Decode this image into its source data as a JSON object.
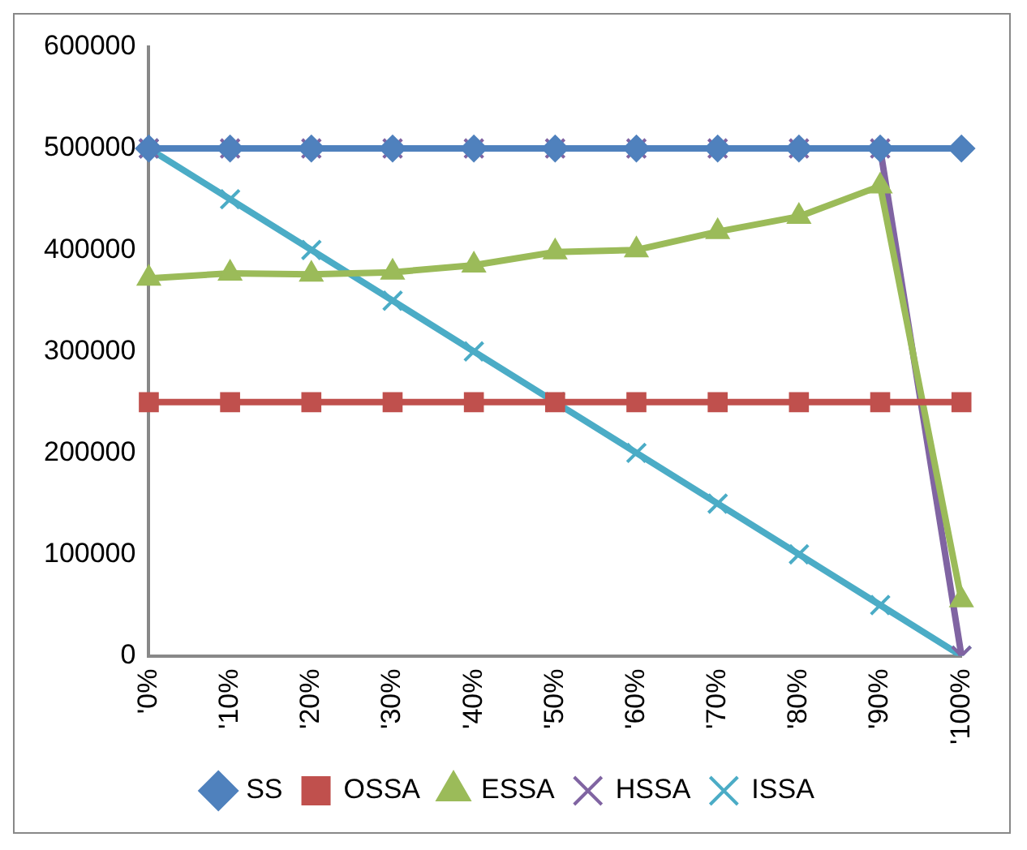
{
  "chart_data": {
    "type": "line",
    "categories": [
      "'0%",
      "'10%",
      "'20%",
      "'30%",
      "'40%",
      "'50%",
      "'60%",
      "'70%",
      "'80%",
      "'90%",
      "'100%"
    ],
    "series": [
      {
        "name": "SS",
        "color": "#4f81bd",
        "marker": "diamond",
        "values": [
          500000,
          500000,
          500000,
          500000,
          500000,
          500000,
          500000,
          500000,
          500000,
          500000,
          500000
        ]
      },
      {
        "name": "OSSA",
        "color": "#c0504d",
        "marker": "square",
        "values": [
          250000,
          250000,
          250000,
          250000,
          250000,
          250000,
          250000,
          250000,
          250000,
          250000,
          250000
        ]
      },
      {
        "name": "ESSA",
        "color": "#9bbb59",
        "marker": "triangle",
        "values": [
          372000,
          377000,
          376000,
          378000,
          385000,
          398000,
          400000,
          418000,
          433000,
          463000,
          55000
        ]
      },
      {
        "name": "HSSA",
        "color": "#8064a2",
        "marker": "cross",
        "values": [
          500000,
          500000,
          500000,
          500000,
          500000,
          500000,
          500000,
          500000,
          500000,
          500000,
          0
        ]
      },
      {
        "name": "ISSA",
        "color": "#4bacc6",
        "marker": "cross",
        "values": [
          500000,
          450000,
          400000,
          350000,
          300000,
          250000,
          200000,
          150000,
          100000,
          50000,
          0
        ]
      }
    ],
    "ylim": [
      0,
      600000
    ],
    "yticks": [
      0,
      100000,
      200000,
      300000,
      400000,
      500000,
      600000
    ],
    "grid": false,
    "legend": "bottom"
  }
}
